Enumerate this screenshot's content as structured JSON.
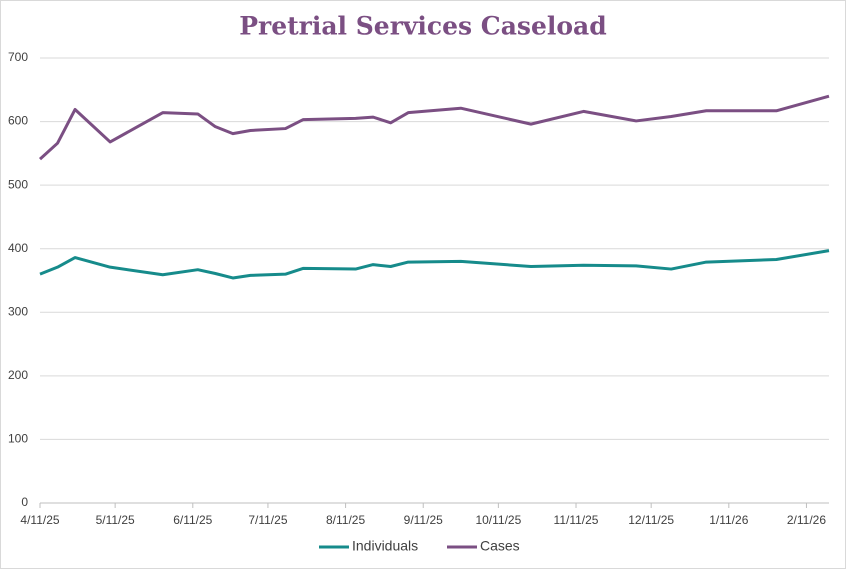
{
  "chart_data": {
    "type": "line",
    "title": "Pretrial Services Caseload",
    "x": [
      "4/11/25",
      "4/18/25",
      "4/25/25",
      "5/9/25",
      "5/30/25",
      "6/13/25",
      "6/20/25",
      "6/27/25",
      "7/4/25",
      "7/18/25",
      "7/25/25",
      "8/15/25",
      "8/22/25",
      "8/29/25",
      "9/5/25",
      "9/26/25",
      "10/24/25",
      "11/14/25",
      "12/5/25",
      "12/19/25",
      "1/2/26",
      "1/30/26",
      "2/20/26"
    ],
    "series": [
      {
        "name": "Individuals",
        "color": "#168b8b",
        "values": [
          360,
          371,
          386,
          371,
          359,
          367,
          361,
          354,
          358,
          360,
          369,
          368,
          375,
          372,
          379,
          380,
          372,
          374,
          373,
          368,
          379,
          383,
          397
        ]
      },
      {
        "name": "Cases",
        "color": "#7b4f83",
        "values": [
          541,
          566,
          619,
          568,
          614,
          612,
          592,
          581,
          586,
          589,
          603,
          605,
          607,
          598,
          614,
          621,
          596,
          616,
          601,
          608,
          617,
          617,
          640
        ]
      }
    ],
    "xlim": [
      "4/11/25",
      "2/20/26"
    ],
    "xticks": [
      "4/11/25",
      "5/11/25",
      "6/11/25",
      "7/11/25",
      "8/11/25",
      "9/11/25",
      "10/11/25",
      "11/11/25",
      "12/11/25",
      "1/11/26",
      "2/11/26"
    ],
    "ylim": [
      0,
      700
    ],
    "yticks": [
      0,
      100,
      200,
      300,
      400,
      500,
      600,
      700
    ],
    "grid": true,
    "legend": "bottom"
  }
}
